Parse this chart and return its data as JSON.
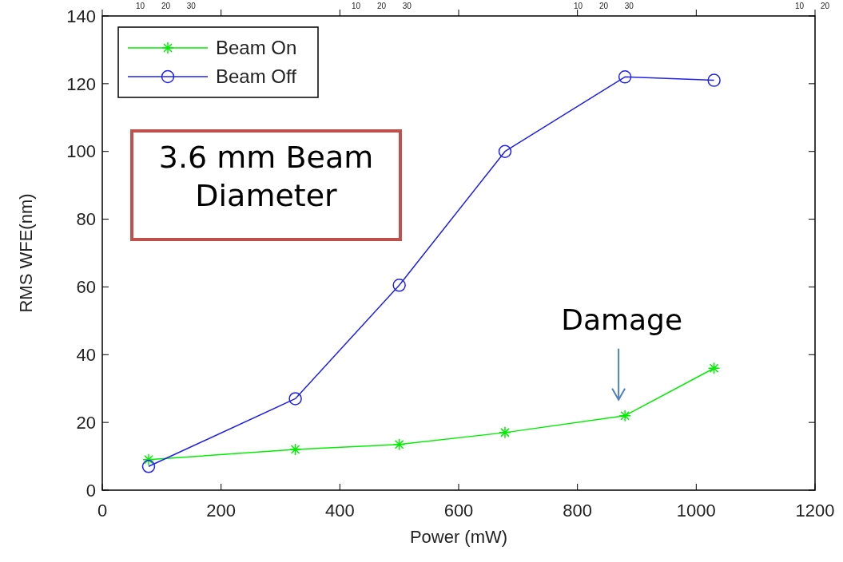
{
  "chart_data": {
    "type": "line",
    "xlabel": "Power (mW)",
    "ylabel": "RMS WFE(nm)",
    "x": [
      78,
      325,
      500,
      678,
      880,
      1030
    ],
    "series": [
      {
        "name": "Beam On",
        "color": "#00ee00",
        "marker": "cross",
        "values": [
          9,
          12,
          13.5,
          17,
          22,
          36
        ]
      },
      {
        "name": "Beam Off",
        "color": "#2020ee",
        "marker": "circle",
        "values": [
          7,
          27,
          60.5,
          100,
          122,
          121
        ]
      }
    ],
    "xlim": [
      0,
      1200
    ],
    "xticks": [
      0,
      200,
      400,
      600,
      800,
      1000,
      1200
    ],
    "ylim": [
      0,
      140
    ],
    "yticks": [
      0,
      20,
      40,
      60,
      80,
      100,
      120,
      140
    ],
    "annotations": [
      "3.6 mm Beam Diameter",
      {
        "text": "Damage",
        "x": 880,
        "y": 22
      },
      "10 20 30",
      "10 20 30",
      "10 20 30",
      "10 20"
    ],
    "legend": "top left",
    "grid": false,
    "line_style": "solid"
  }
}
